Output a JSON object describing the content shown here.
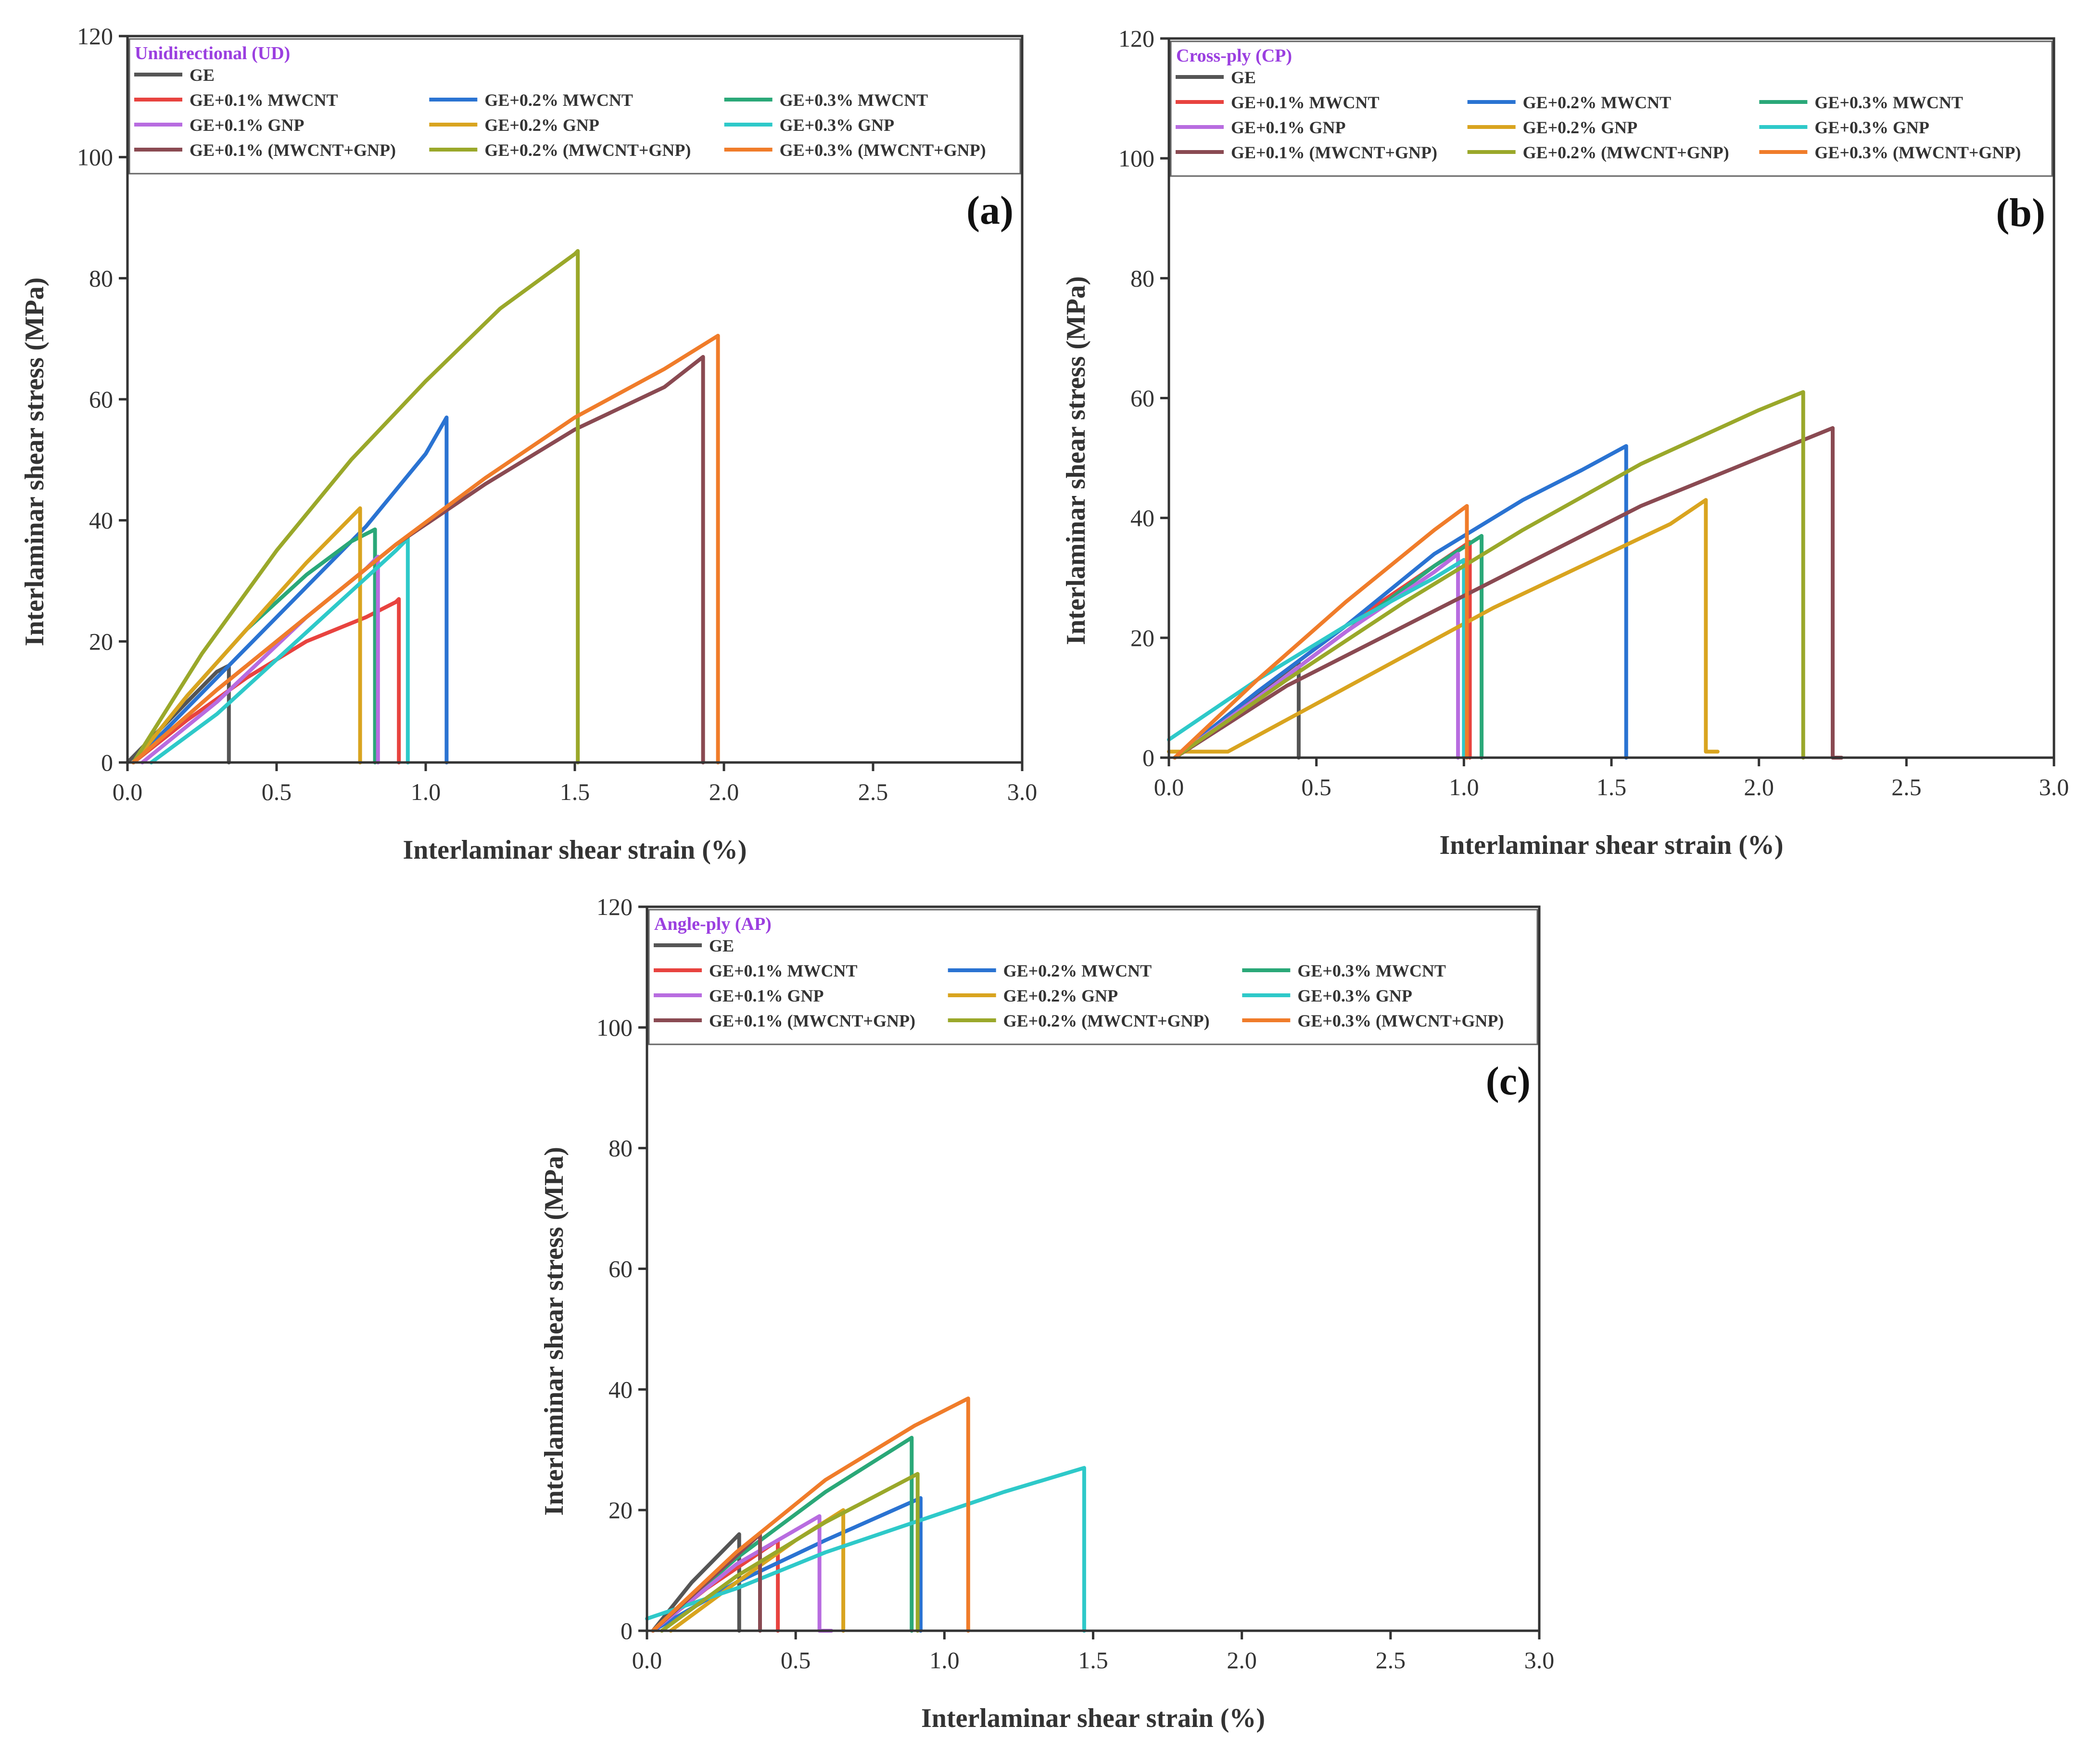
{
  "chart_data": [
    {
      "type": "line",
      "panel_label": "(a)",
      "legend_title": "Unidirectional (UD)",
      "xlabel": "Interlaminar shear strain (%)",
      "ylabel": "Interlaminar shear stress (MPa)",
      "xlim": [
        0,
        3
      ],
      "ylim": [
        0,
        120
      ],
      "xticks": [
        "0.0",
        "0.5",
        "1.0",
        "1.5",
        "2.0",
        "2.5",
        "3.0"
      ],
      "yticks": [
        "0",
        "20",
        "40",
        "60",
        "80",
        "100",
        "120"
      ],
      "series": [
        {
          "name": "GE",
          "color": "#555555",
          "x": [
            0,
            0.1,
            0.2,
            0.3,
            0.34,
            0.34
          ],
          "y": [
            0,
            5,
            10,
            15,
            16,
            0
          ]
        },
        {
          "name": "GE+0.1% MWCNT",
          "color": "#e8433f",
          "x": [
            0.02,
            0.2,
            0.4,
            0.6,
            0.8,
            0.9,
            0.91,
            0.91
          ],
          "y": [
            0,
            7,
            14,
            20,
            24,
            26.5,
            27,
            0
          ]
        },
        {
          "name": "GE+0.2% MWCNT",
          "color": "#2a73d2",
          "x": [
            0.02,
            0.2,
            0.4,
            0.6,
            0.8,
            1.0,
            1.07,
            1.07
          ],
          "y": [
            0,
            9,
            19,
            29,
            39,
            51,
            57,
            0
          ]
        },
        {
          "name": "GE+0.3% MWCNT",
          "color": "#2aa878",
          "x": [
            0.02,
            0.2,
            0.4,
            0.6,
            0.75,
            0.83,
            0.83
          ],
          "y": [
            0,
            11,
            22,
            31,
            36.5,
            38.5,
            0
          ]
        },
        {
          "name": "GE+0.1% GNP",
          "color": "#b86ce0",
          "x": [
            0.05,
            0.3,
            0.6,
            0.8,
            0.84,
            0.84
          ],
          "y": [
            0,
            10,
            24,
            32,
            34,
            0
          ]
        },
        {
          "name": "GE+0.2% GNP",
          "color": "#d9a41f",
          "x": [
            0.02,
            0.2,
            0.4,
            0.6,
            0.78,
            0.78
          ],
          "y": [
            0,
            11,
            22,
            33,
            42,
            0
          ]
        },
        {
          "name": "GE+0.3% GNP",
          "color": "#2ec9c9",
          "x": [
            0.08,
            0.3,
            0.5,
            0.7,
            0.9,
            0.94,
            0.94
          ],
          "y": [
            0,
            8,
            17,
            26,
            35,
            37,
            0
          ]
        },
        {
          "name": "GE+0.1% (MWCNT+GNP)",
          "color": "#8a4a52",
          "x": [
            0.02,
            0.3,
            0.6,
            0.9,
            1.2,
            1.5,
            1.8,
            1.93,
            1.93
          ],
          "y": [
            0,
            12,
            24,
            36,
            46,
            55,
            62,
            67,
            0
          ]
        },
        {
          "name": "GE+0.2% (MWCNT+GNP)",
          "color": "#9aa82a",
          "x": [
            0.02,
            0.25,
            0.5,
            0.75,
            1.0,
            1.25,
            1.5,
            1.51,
            1.51
          ],
          "y": [
            0,
            18,
            35,
            50,
            63,
            75,
            84,
            84.5,
            0
          ]
        },
        {
          "name": "GE+0.3% (MWCNT+GNP)",
          "color": "#f07c2a",
          "x": [
            0.02,
            0.3,
            0.6,
            0.9,
            1.2,
            1.5,
            1.8,
            1.98,
            1.98
          ],
          "y": [
            0,
            12,
            24,
            36,
            47,
            57,
            65,
            70.5,
            0
          ]
        }
      ]
    },
    {
      "type": "line",
      "panel_label": "(b)",
      "legend_title": "Cross-ply (CP)",
      "xlabel": "Interlaminar shear strain (%)",
      "ylabel": "Interlaminar shear stress (MPa)",
      "xlim": [
        0,
        3
      ],
      "ylim": [
        0,
        120
      ],
      "xticks": [
        "0.0",
        "0.5",
        "1.0",
        "1.5",
        "2.0",
        "2.5",
        "3.0"
      ],
      "yticks": [
        "0",
        "20",
        "40",
        "60",
        "80",
        "100",
        "120"
      ],
      "series": [
        {
          "name": "GE",
          "color": "#555555",
          "x": [
            0.02,
            0.2,
            0.44,
            0.44
          ],
          "y": [
            0,
            7,
            16,
            0
          ]
        },
        {
          "name": "GE+0.1% MWCNT",
          "color": "#e8433f",
          "x": [
            0.02,
            0.3,
            0.6,
            0.9,
            1.02,
            1.02
          ],
          "y": [
            0,
            11,
            22,
            32,
            36,
            0
          ]
        },
        {
          "name": "GE+0.2% MWCNT",
          "color": "#2a73d2",
          "x": [
            0.02,
            0.3,
            0.6,
            0.9,
            1.2,
            1.4,
            1.55,
            1.55
          ],
          "y": [
            0,
            11,
            22,
            34,
            43,
            48,
            52,
            0
          ]
        },
        {
          "name": "GE+0.3% MWCNT",
          "color": "#2aa878",
          "x": [
            0.02,
            0.3,
            0.6,
            0.9,
            1.06,
            1.06
          ],
          "y": [
            0,
            10,
            21,
            32,
            37,
            0
          ]
        },
        {
          "name": "GE+0.1% GNP",
          "color": "#b86ce0",
          "x": [
            0.02,
            0.3,
            0.6,
            0.9,
            0.98,
            0.98
          ],
          "y": [
            0,
            10,
            21,
            31,
            34,
            0
          ]
        },
        {
          "name": "GE+0.2% GNP",
          "color": "#d9a41f",
          "x": [
            0.0,
            0.2,
            0.5,
            0.8,
            1.1,
            1.4,
            1.7,
            1.82,
            1.82,
            1.86
          ],
          "y": [
            1,
            1,
            9,
            17,
            25,
            32,
            39,
            43,
            1,
            1
          ]
        },
        {
          "name": "GE+0.3% GNP",
          "color": "#2ec9c9",
          "x": [
            0.0,
            0.3,
            0.6,
            0.9,
            1.0,
            1.0
          ],
          "y": [
            3,
            13,
            22,
            30,
            33,
            0
          ]
        },
        {
          "name": "GE+0.1% (MWCNT+GNP)",
          "color": "#8a4a52",
          "x": [
            0.02,
            0.4,
            0.8,
            1.2,
            1.6,
            2.0,
            2.25,
            2.25,
            2.28
          ],
          "y": [
            0,
            12,
            22,
            32,
            42,
            50,
            55,
            0,
            0
          ]
        },
        {
          "name": "GE+0.2% (MWCNT+GNP)",
          "color": "#9aa82a",
          "x": [
            0.02,
            0.4,
            0.8,
            1.2,
            1.6,
            2.0,
            2.15,
            2.15
          ],
          "y": [
            0,
            13,
            26,
            38,
            49,
            58,
            61,
            0
          ]
        },
        {
          "name": "GE+0.3% (MWCNT+GNP)",
          "color": "#f07c2a",
          "x": [
            0.02,
            0.3,
            0.6,
            0.9,
            1.01,
            1.01
          ],
          "y": [
            0,
            13,
            26,
            38,
            42,
            0
          ]
        }
      ]
    },
    {
      "type": "line",
      "panel_label": "(c)",
      "legend_title": "Angle-ply (AP)",
      "xlabel": "Interlaminar shear strain (%)",
      "ylabel": "Interlaminar shear stress (MPa)",
      "xlim": [
        0,
        3
      ],
      "ylim": [
        0,
        120
      ],
      "xticks": [
        "0.0",
        "0.5",
        "1.0",
        "1.5",
        "2.0",
        "2.5",
        "3.0"
      ],
      "yticks": [
        "0",
        "20",
        "40",
        "60",
        "80",
        "100",
        "120"
      ],
      "series": [
        {
          "name": "GE",
          "color": "#555555",
          "x": [
            0.02,
            0.15,
            0.31,
            0.31
          ],
          "y": [
            0,
            8,
            16,
            0
          ]
        },
        {
          "name": "GE+0.1% MWCNT",
          "color": "#e8433f",
          "x": [
            0.02,
            0.2,
            0.44,
            0.44
          ],
          "y": [
            0,
            7,
            15,
            0
          ]
        },
        {
          "name": "GE+0.2% MWCNT",
          "color": "#2a73d2",
          "x": [
            0.02,
            0.3,
            0.6,
            0.92,
            0.92
          ],
          "y": [
            0,
            8,
            15,
            22,
            0
          ]
        },
        {
          "name": "GE+0.3% MWCNT",
          "color": "#2aa878",
          "x": [
            0.02,
            0.3,
            0.6,
            0.89,
            0.89
          ],
          "y": [
            0,
            12,
            23,
            32,
            0
          ]
        },
        {
          "name": "GE+0.1% GNP",
          "color": "#b86ce0",
          "x": [
            0.02,
            0.3,
            0.58,
            0.58,
            0.62
          ],
          "y": [
            0,
            11,
            19,
            0,
            0
          ]
        },
        {
          "name": "GE+0.2% GNP",
          "color": "#d9a41f",
          "x": [
            0.08,
            0.3,
            0.5,
            0.66,
            0.66
          ],
          "y": [
            0,
            8,
            15,
            20,
            0
          ]
        },
        {
          "name": "GE+0.3% GNP",
          "color": "#2ec9c9",
          "x": [
            0.0,
            0.3,
            0.6,
            0.9,
            1.2,
            1.47,
            1.47
          ],
          "y": [
            2,
            7,
            13,
            18,
            23,
            27,
            0
          ]
        },
        {
          "name": "GE+0.1% (MWCNT+GNP)",
          "color": "#8a4a52",
          "x": [
            0.02,
            0.2,
            0.38,
            0.38
          ],
          "y": [
            0,
            8,
            16,
            0
          ]
        },
        {
          "name": "GE+0.2% (MWCNT+GNP)",
          "color": "#9aa82a",
          "x": [
            0.05,
            0.3,
            0.6,
            0.91,
            0.91
          ],
          "y": [
            0,
            9,
            18,
            26,
            0
          ]
        },
        {
          "name": "GE+0.3% (MWCNT+GNP)",
          "color": "#f07c2a",
          "x": [
            0.02,
            0.3,
            0.6,
            0.9,
            1.08,
            1.08
          ],
          "y": [
            0,
            13,
            25,
            34,
            38.5,
            0
          ]
        }
      ]
    }
  ]
}
